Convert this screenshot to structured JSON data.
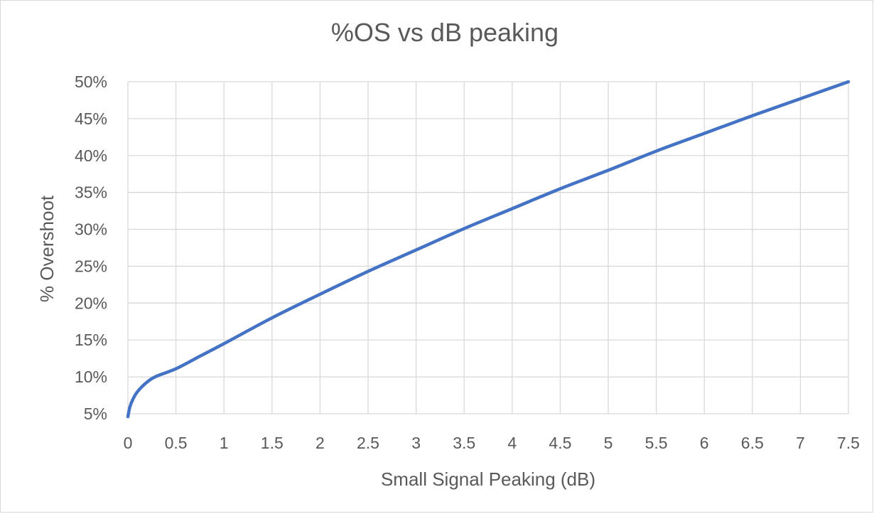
{
  "chart_data": {
    "type": "line",
    "title": "%OS vs dB peaking",
    "xlabel": "Small Signal Peaking (dB)",
    "ylabel": "% Overshoot",
    "xlim": [
      0,
      7.5
    ],
    "ylim": [
      5,
      50
    ],
    "x_ticks": [
      "0",
      "0.5",
      "1",
      "1.5",
      "2",
      "2.5",
      "3",
      "3.5",
      "4",
      "4.5",
      "5",
      "5.5",
      "6",
      "6.5",
      "7",
      "7.5"
    ],
    "y_ticks": [
      "5%",
      "10%",
      "15%",
      "20%",
      "25%",
      "30%",
      "35%",
      "40%",
      "45%",
      "50%"
    ],
    "grid": true,
    "legend": "none",
    "series": [
      {
        "color": "#4472c4",
        "x": [
          0.0,
          0.02,
          0.05,
          0.1,
          0.2,
          0.3,
          0.5,
          0.75,
          1.0,
          1.5,
          2.0,
          2.5,
          3.0,
          3.5,
          4.0,
          4.5,
          5.0,
          5.5,
          6.0,
          6.5,
          7.0,
          7.5
        ],
        "y": [
          4.6,
          5.9,
          6.9,
          8.0,
          9.3,
          10.1,
          11.1,
          12.8,
          14.5,
          18.0,
          21.2,
          24.3,
          27.2,
          30.1,
          32.8,
          35.5,
          38.0,
          40.6,
          43.0,
          45.4,
          47.7,
          50.0
        ]
      }
    ]
  }
}
